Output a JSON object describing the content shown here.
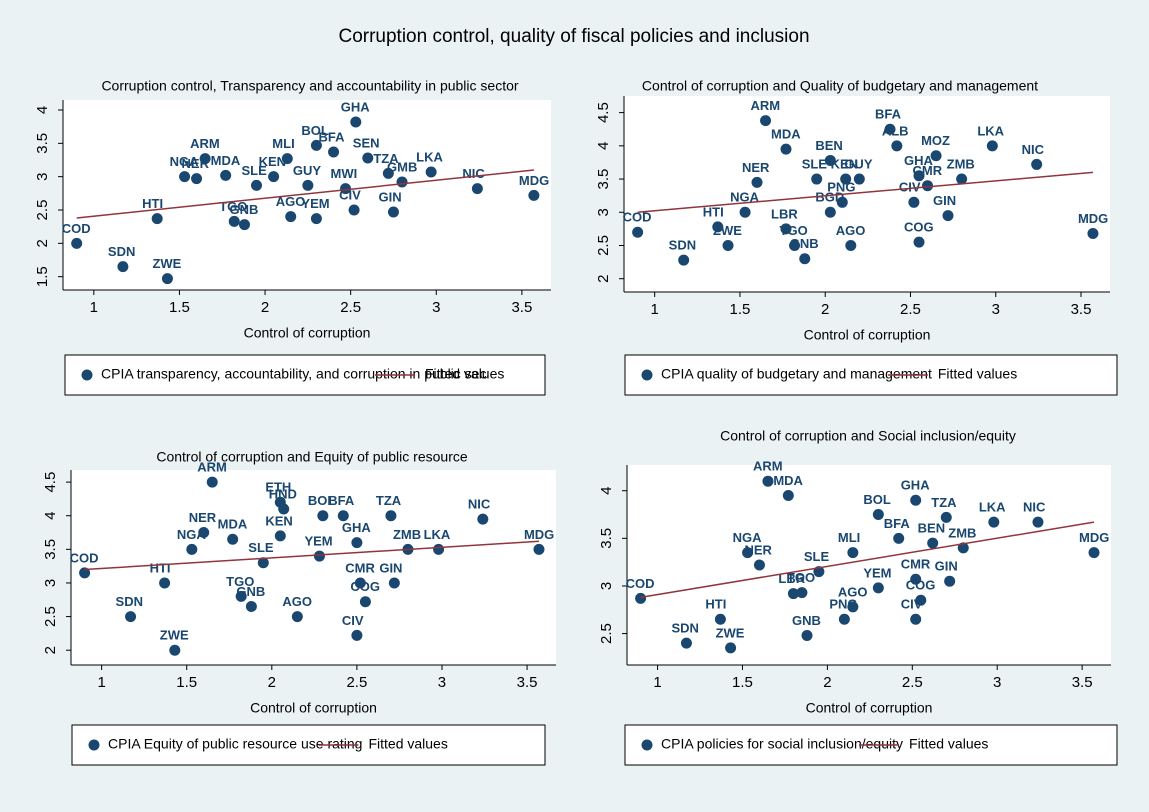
{
  "title": "Corruption control, quality of fiscal policies and inclusion",
  "chart_data": [
    {
      "type": "scatter",
      "title": "Corruption control, Transparency and accountability in public sector",
      "xlabel": "Control of corruption",
      "xlim": [
        0.82,
        3.67
      ],
      "ylim": [
        1.3,
        4.15
      ],
      "xticks": [
        1,
        1.5,
        2,
        2.5,
        3,
        3.5
      ],
      "yticks": [
        1.5,
        2,
        2.5,
        3,
        3.5,
        4
      ],
      "series": [
        {
          "name": "CPIA transparency, accountability, and corruption in public sec",
          "color": "#1a476f",
          "labels": [
            "COD",
            "SDN",
            "ZWE",
            "HTI",
            "NGA",
            "NER",
            "ARM",
            "MDA",
            "TGO",
            "GNB",
            "SLE",
            "KEN",
            "MLI",
            "GUY",
            "BOL",
            "BFA",
            "GHA",
            "MWI",
            "SEN",
            "TZA",
            "LKA",
            "NIC",
            "MDG",
            "YEM",
            "AGO",
            "CIV",
            "GIN",
            "GMB"
          ],
          "x": [
            0.9,
            1.17,
            1.43,
            1.37,
            1.53,
            1.6,
            1.65,
            1.77,
            1.82,
            1.88,
            1.95,
            2.05,
            2.13,
            2.25,
            2.3,
            2.4,
            2.53,
            2.47,
            2.6,
            2.72,
            2.97,
            3.24,
            3.57,
            2.3,
            2.15,
            2.52,
            2.75,
            2.8
          ],
          "values": [
            2.0,
            1.65,
            1.47,
            2.37,
            3.0,
            2.97,
            3.27,
            3.02,
            2.33,
            2.28,
            2.87,
            3.0,
            3.27,
            2.87,
            3.47,
            3.37,
            3.82,
            2.82,
            3.28,
            3.05,
            3.07,
            2.82,
            2.72,
            2.37,
            2.4,
            2.5,
            2.47,
            2.92
          ]
        },
        {
          "type": "line",
          "name": "Fitted values",
          "color": "#90353b",
          "x": [
            0.9,
            3.57
          ],
          "values": [
            2.38,
            3.1
          ]
        }
      ]
    },
    {
      "type": "scatter",
      "title": "Control of corruption and Quality of budgetary and management",
      "xlabel": "Control of corruption",
      "xlim": [
        0.82,
        3.67
      ],
      "ylim": [
        1.8,
        4.75
      ],
      "xticks": [
        1,
        1.5,
        2,
        2.5,
        3,
        3.5
      ],
      "yticks": [
        2,
        2.5,
        3,
        3.5,
        4,
        4.5
      ],
      "series": [
        {
          "name": "CPIA quality of budgetary and management",
          "color": "#1a476f",
          "labels": [
            "COD",
            "SDN",
            "ZWE",
            "HTI",
            "NGA",
            "NER",
            "ARM",
            "MDA",
            "LBR",
            "TGO",
            "GNB",
            "SLE",
            "BEN",
            "PNG",
            "BGD",
            "AGO",
            "GUY",
            "BFA",
            "ALB",
            "MOZ",
            "GHA",
            "LKA",
            "NIC",
            "MDG",
            "CIV",
            "COG",
            "CMR",
            "ZMB",
            "GIN",
            "KEN"
          ],
          "x": [
            0.9,
            1.17,
            1.43,
            1.37,
            1.53,
            1.6,
            1.65,
            1.77,
            1.77,
            1.82,
            1.88,
            1.95,
            2.03,
            2.1,
            2.03,
            2.15,
            2.2,
            2.38,
            2.42,
            2.65,
            2.55,
            2.98,
            3.24,
            3.57,
            2.52,
            2.55,
            2.6,
            2.8,
            2.72,
            2.12
          ],
          "values": [
            2.7,
            2.28,
            2.5,
            2.78,
            3.0,
            3.45,
            4.38,
            3.95,
            2.75,
            2.5,
            2.3,
            3.5,
            3.78,
            3.15,
            3.0,
            2.5,
            3.5,
            4.25,
            4.0,
            3.85,
            3.55,
            4.0,
            3.72,
            2.68,
            3.15,
            2.55,
            3.4,
            3.5,
            2.95,
            3.5
          ]
        },
        {
          "type": "line",
          "name": "Fitted values",
          "color": "#90353b",
          "x": [
            0.9,
            3.57
          ],
          "values": [
            3.0,
            3.6
          ]
        }
      ]
    },
    {
      "type": "scatter",
      "title": "Control of corruption and Equity of public resource",
      "xlabel": "Control of corruption",
      "xlim": [
        0.82,
        3.67
      ],
      "ylim": [
        1.78,
        4.68
      ],
      "xticks": [
        1,
        1.5,
        2,
        2.5,
        3,
        3.5
      ],
      "yticks": [
        2,
        2.5,
        3,
        3.5,
        4,
        4.5
      ],
      "series": [
        {
          "name": "CPIA Equity of public resource use rating",
          "color": "#1a476f",
          "labels": [
            "COD",
            "SDN",
            "ZWE",
            "HTI",
            "NGA",
            "NER",
            "ARM",
            "MDA",
            "TGO",
            "GNB",
            "SLE",
            "KEN",
            "ETH",
            "HND",
            "AGO",
            "BOL",
            "BFA",
            "GHA",
            "YEM",
            "CIV",
            "COG",
            "CMR",
            "TZA",
            "ZMB",
            "LKA",
            "NIC",
            "MDG",
            "GIN"
          ],
          "x": [
            0.9,
            1.17,
            1.43,
            1.37,
            1.53,
            1.6,
            1.65,
            1.77,
            1.82,
            1.88,
            1.95,
            2.05,
            2.05,
            2.07,
            2.15,
            2.3,
            2.42,
            2.5,
            2.28,
            2.5,
            2.55,
            2.52,
            2.7,
            2.8,
            2.98,
            3.24,
            3.57,
            2.72
          ],
          "values": [
            3.15,
            2.5,
            2.0,
            3.0,
            3.5,
            3.75,
            4.5,
            3.65,
            2.8,
            2.65,
            3.3,
            3.7,
            4.2,
            4.1,
            2.5,
            4.0,
            4.0,
            3.6,
            3.4,
            2.22,
            2.72,
            3.0,
            4.0,
            3.5,
            3.5,
            3.95,
            3.5,
            3.0
          ]
        },
        {
          "type": "line",
          "name": "Fitted values",
          "color": "#90353b",
          "x": [
            0.9,
            3.57
          ],
          "values": [
            3.2,
            3.62
          ]
        }
      ]
    },
    {
      "type": "scatter",
      "title": "Control of corruption and Social inclusion/equity",
      "xlabel": "Control of corruption",
      "xlim": [
        0.82,
        3.67
      ],
      "ylim": [
        2.17,
        4.27
      ],
      "xticks": [
        1,
        1.5,
        2,
        2.5,
        3,
        3.5
      ],
      "yticks": [
        2.5,
        3,
        3.5,
        4
      ],
      "series": [
        {
          "name": "CPIA  policies for social inclusion/equity",
          "color": "#1a476f",
          "labels": [
            "COD",
            "SDN",
            "ZWE",
            "HTI",
            "NGA",
            "NER",
            "ARM",
            "MDA",
            "LBR",
            "TGO",
            "GNB",
            "SLE",
            "AGO",
            "PNG",
            "MLI",
            "YEM",
            "BOL",
            "BFA",
            "GHA",
            "TZA",
            "LKA",
            "NIC",
            "MDG",
            "CMR",
            "GIN",
            "COG",
            "CIV",
            "BEN",
            "ZMB"
          ],
          "x": [
            0.9,
            1.17,
            1.43,
            1.37,
            1.53,
            1.6,
            1.65,
            1.77,
            1.8,
            1.85,
            1.88,
            1.95,
            2.15,
            2.1,
            2.15,
            2.3,
            2.3,
            2.42,
            2.52,
            2.7,
            2.98,
            3.24,
            3.57,
            2.52,
            2.72,
            2.55,
            2.52,
            2.62,
            2.8
          ],
          "values": [
            2.87,
            2.4,
            2.35,
            2.65,
            3.35,
            3.22,
            4.1,
            3.95,
            2.92,
            2.93,
            2.48,
            3.15,
            2.78,
            2.65,
            3.35,
            2.98,
            3.75,
            3.5,
            3.9,
            3.72,
            3.67,
            3.67,
            3.35,
            3.07,
            3.05,
            2.85,
            2.65,
            3.45,
            3.4
          ]
        },
        {
          "type": "line",
          "name": "Fitted values",
          "color": "#90353b",
          "x": [
            0.9,
            3.57
          ],
          "values": [
            2.88,
            3.67
          ]
        }
      ]
    }
  ]
}
